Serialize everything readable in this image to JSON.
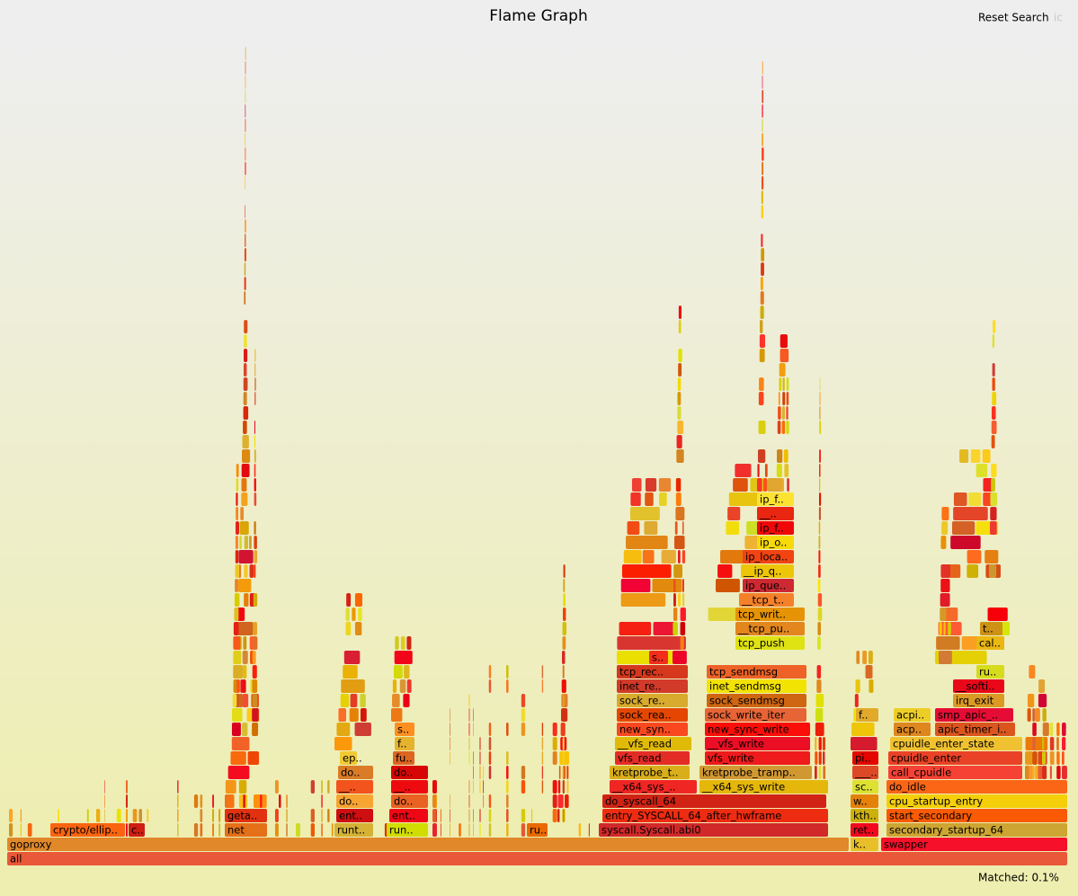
{
  "header": {
    "title": "Flame Graph",
    "reset_search": "Reset Search",
    "ic": "ic"
  },
  "frames": [
    "all",
    "goproxy",
    "k..",
    "swapper",
    "crypto/ellip..",
    "c..",
    "net",
    "runt..",
    "run..",
    "ru..",
    "syscall.Syscall.abi0",
    "ret..",
    "secondary_startup_64",
    "geta..",
    "ent..",
    "ent..",
    "entry_SYSCALL_64_after_hwframe",
    "kth..",
    "start_secondary",
    "do..",
    "do..",
    "do_syscall_64",
    "w..",
    "cpu_startup_entry",
    "__..",
    "__..",
    "__x64_sys_..",
    "__x64_sys_write",
    "sc..",
    "do_idle",
    "do..",
    "do..",
    "kretprobe_t..",
    "kretprobe_tramp..",
    "___..",
    "call_cpuidle",
    "ep..",
    "fu..",
    "vfs_read",
    "vfs_write",
    "pi..",
    "cpuidle_enter",
    "f..",
    "__vfs_read",
    "__vfs_write",
    "cpuidle_enter_state",
    "s..",
    "new_syn..",
    "new_sync_write",
    "acp..",
    "apic_timer_i..",
    "sock_rea..",
    "sock_write_iter",
    "f..",
    "acpi..",
    "smp_apic_..",
    "sock_re..",
    "sock_sendmsg",
    "irq_exit",
    "inet_re..",
    "inet_sendmsg",
    "__softi..",
    "tcp_rec..",
    "tcp_sendmsg",
    "ru..",
    "s..",
    "tcp_push",
    "cal..",
    "__tcp_pu..",
    "t..",
    "tcp_writ..",
    "__tcp_t..",
    "ip_que..",
    "__ip_q..",
    "ip_loca..",
    "ip_o..",
    "ip_f..",
    "__..",
    "ip_f.."
  ],
  "footer": {
    "matched": "Matched: 0.1%"
  }
}
